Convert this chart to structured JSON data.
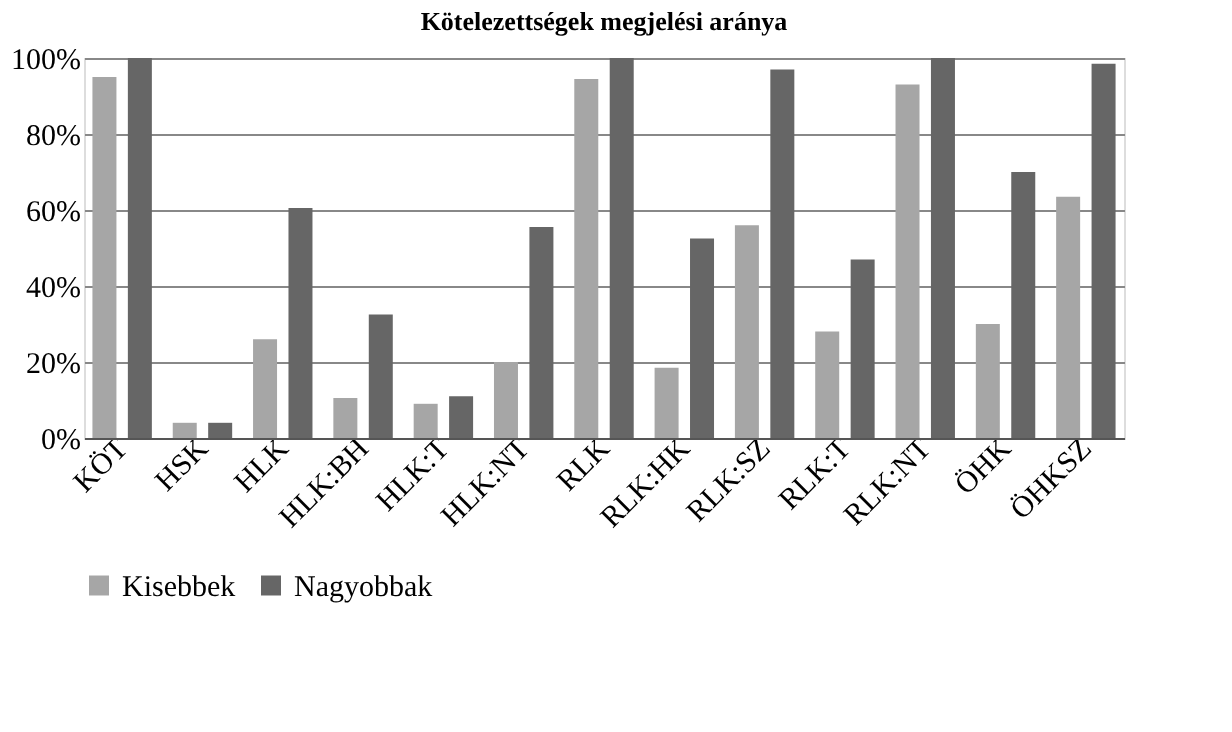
{
  "chart_data": {
    "type": "bar",
    "title": "Kötelezettségek megjelési aránya",
    "categories": [
      "KÖT",
      "HSK",
      "HLK",
      "HLK:BH",
      "HLK:T",
      "HLK:NT",
      "RLK",
      "RLK:HK",
      "RLK:SZ",
      "RLK:T",
      "RLK:NT",
      "ÖHK",
      "ÖHKSZ"
    ],
    "series": [
      {
        "name": "Kisebbek",
        "color": "#a6a6a6",
        "values": [
          95,
          4,
          26,
          10.5,
          9,
          20,
          94.5,
          18.5,
          56,
          28,
          93,
          30,
          63.5
        ]
      },
      {
        "name": "Nagyobbak",
        "color": "#666666",
        "values": [
          100,
          4,
          60.5,
          32.5,
          11,
          55.5,
          100,
          52.5,
          97,
          47,
          100,
          70,
          98.5
        ]
      }
    ],
    "ylim": [
      0,
      100
    ],
    "yticks": [
      {
        "value": 0,
        "label": "0%"
      },
      {
        "value": 20,
        "label": "20%"
      },
      {
        "value": 40,
        "label": "40%"
      },
      {
        "value": 60,
        "label": "60%"
      },
      {
        "value": 80,
        "label": "80%"
      },
      {
        "value": 100,
        "label": "100%"
      }
    ],
    "grid": "y",
    "legend": "bottom"
  }
}
